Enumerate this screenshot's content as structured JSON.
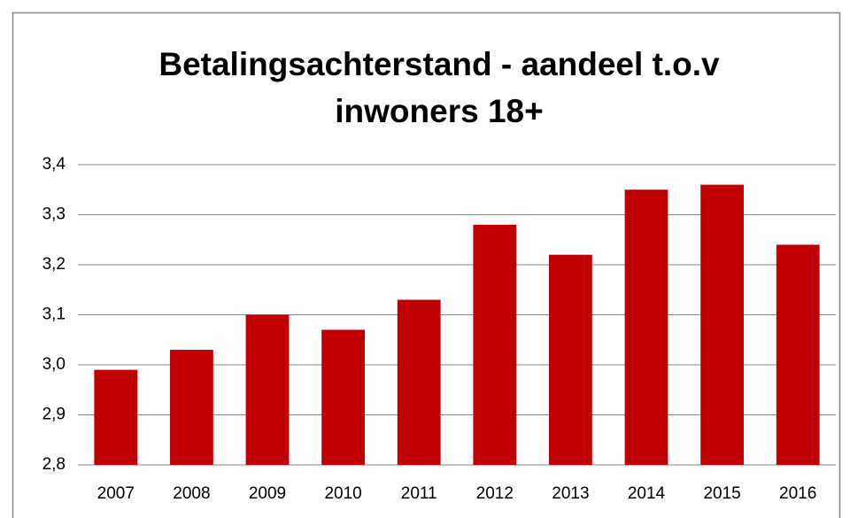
{
  "chart_data": {
    "type": "bar",
    "title": [
      "Betalingsachterstand - aandeel t.o.v",
      "inwoners 18+"
    ],
    "categories": [
      "2007",
      "2008",
      "2009",
      "2010",
      "2011",
      "2012",
      "2013",
      "2014",
      "2015",
      "2016"
    ],
    "values": [
      2.99,
      3.03,
      3.1,
      3.07,
      3.13,
      3.28,
      3.22,
      3.35,
      3.36,
      3.24
    ],
    "color": "#c00000",
    "ylim": [
      2.8,
      3.4
    ],
    "yticks": [
      {
        "value": 2.8,
        "label": "2,8"
      },
      {
        "value": 2.9,
        "label": "2,9"
      },
      {
        "value": 3.0,
        "label": "3,0"
      },
      {
        "value": 3.1,
        "label": "3,1"
      },
      {
        "value": 3.2,
        "label": "3,2"
      },
      {
        "value": 3.3,
        "label": "3,3"
      },
      {
        "value": 3.4,
        "label": "3,4"
      }
    ],
    "grid": true
  }
}
